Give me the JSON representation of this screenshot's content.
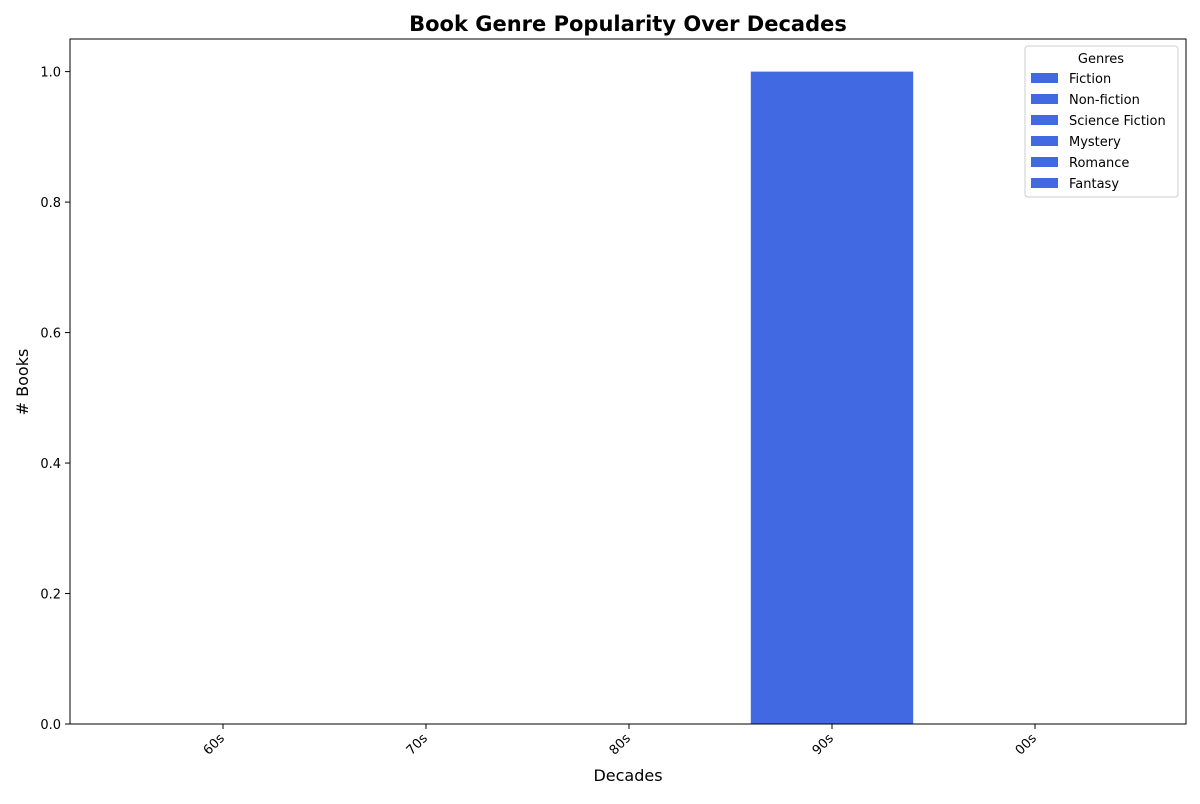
{
  "chart_data": {
    "type": "bar",
    "title": "Book Genre Popularity Over Decades",
    "xlabel": "Decades",
    "ylabel": "# Books",
    "categories": [
      "60s",
      "70s",
      "80s",
      "90s",
      "00s"
    ],
    "series": [
      {
        "name": "Fiction",
        "values": [
          0,
          0,
          0,
          1,
          0
        ]
      },
      {
        "name": "Non-fiction",
        "values": [
          0,
          0,
          0,
          0,
          0
        ]
      },
      {
        "name": "Science Fiction",
        "values": [
          0,
          0,
          0,
          0,
          0
        ]
      },
      {
        "name": "Mystery",
        "values": [
          0,
          0,
          0,
          0,
          0
        ]
      },
      {
        "name": "Romance",
        "values": [
          0,
          0,
          0,
          0,
          0
        ]
      },
      {
        "name": "Fantasy",
        "values": [
          0,
          0,
          0,
          0,
          0
        ]
      }
    ],
    "stacked": true,
    "ylim": [
      0,
      1.05
    ],
    "yticks": [
      "0.0",
      "0.2",
      "0.4",
      "0.6",
      "0.8",
      "1.0"
    ],
    "bar_color": "#4169e1",
    "legend": {
      "title": "Genres",
      "position": "top-right"
    },
    "grid": false,
    "xtick_rotation": "45deg"
  }
}
